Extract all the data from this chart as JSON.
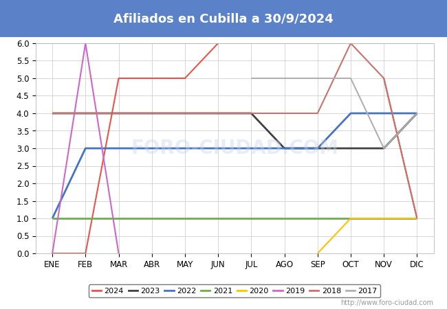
{
  "title": "Afiliados en Cubilla a 30/9/2024",
  "title_bg_color": "#5b82c8",
  "months": [
    "ENE",
    "FEB",
    "MAR",
    "ABR",
    "MAY",
    "JUN",
    "JUL",
    "AGO",
    "SEP",
    "OCT",
    "NOV",
    "DIC"
  ],
  "ylim": [
    0.0,
    6.0
  ],
  "yticks": [
    0.0,
    0.5,
    1.0,
    1.5,
    2.0,
    2.5,
    3.0,
    3.5,
    4.0,
    4.5,
    5.0,
    5.5,
    6.0
  ],
  "watermark": "http://www.foro-ciudad.com",
  "series": [
    {
      "label": "2024",
      "color": "#e8534a",
      "linewidth": 1.5,
      "values": [
        0,
        0,
        5,
        5,
        5,
        6,
        null,
        null,
        null,
        null,
        5,
        1
      ]
    },
    {
      "label": "2023",
      "color": "#404040",
      "linewidth": 2.0,
      "values": [
        4,
        4,
        4,
        4,
        4,
        4,
        4,
        3,
        3,
        3,
        3,
        4
      ]
    },
    {
      "label": "2022",
      "color": "#4472c4",
      "linewidth": 2.0,
      "values": [
        1,
        3,
        3,
        3,
        3,
        3,
        3,
        3,
        3,
        4,
        4,
        4
      ]
    },
    {
      "label": "2021",
      "color": "#70ad47",
      "linewidth": 2.0,
      "values": [
        1,
        1,
        1,
        1,
        1,
        1,
        1,
        1,
        1,
        1,
        1,
        1
      ]
    },
    {
      "label": "2020",
      "color": "#ffc000",
      "linewidth": 1.5,
      "values": [
        null,
        null,
        null,
        null,
        null,
        null,
        null,
        null,
        0,
        1,
        1,
        1
      ]
    },
    {
      "label": "2019",
      "color": "#cc66cc",
      "linewidth": 1.5,
      "values": [
        0,
        6,
        0,
        null,
        null,
        null,
        null,
        null,
        null,
        null,
        null,
        null
      ]
    },
    {
      "label": "2018",
      "color": "#c9726a",
      "linewidth": 1.5,
      "values": [
        4,
        4,
        4,
        4,
        4,
        4,
        4,
        4,
        4,
        6,
        5,
        1
      ]
    },
    {
      "label": "2017",
      "color": "#b0b0b0",
      "linewidth": 1.5,
      "values": [
        null,
        null,
        null,
        null,
        null,
        null,
        5,
        5,
        5,
        5,
        3,
        4
      ]
    }
  ]
}
